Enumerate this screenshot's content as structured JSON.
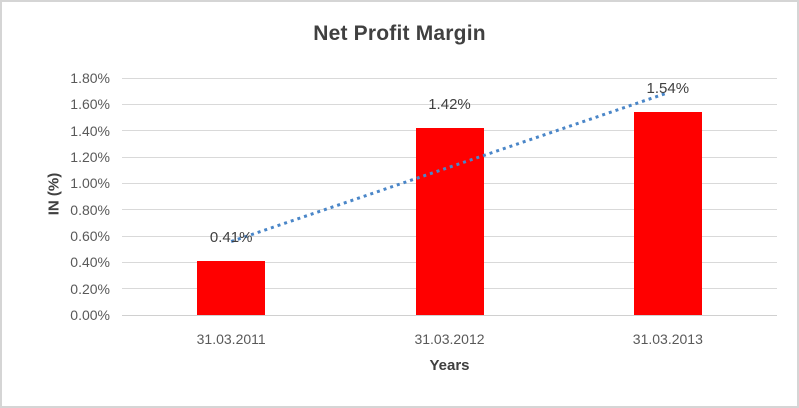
{
  "chart_data": {
    "type": "bar",
    "title": "Net Profit Margin",
    "xlabel": "Years",
    "ylabel": "IN (%)",
    "categories": [
      "31.03.2011",
      "31.03.2012",
      "31.03.2013"
    ],
    "values": [
      0.41,
      1.42,
      1.54
    ],
    "data_labels": [
      "0.41%",
      "1.42%",
      "1.54%"
    ],
    "ylim": [
      0,
      1.8
    ],
    "ytick_step": 0.2,
    "yticks": [
      {
        "value": 0.0,
        "label": "0.00%"
      },
      {
        "value": 0.2,
        "label": "0.20%"
      },
      {
        "value": 0.4,
        "label": "0.40%"
      },
      {
        "value": 0.6,
        "label": "0.60%"
      },
      {
        "value": 0.8,
        "label": "0.80%"
      },
      {
        "value": 1.0,
        "label": "1.00%"
      },
      {
        "value": 1.2,
        "label": "1.20%"
      },
      {
        "value": 1.4,
        "label": "1.40%"
      },
      {
        "value": 1.6,
        "label": "1.60%"
      },
      {
        "value": 1.8,
        "label": "1.80%"
      }
    ],
    "grid": true,
    "legend": "none",
    "trendline": {
      "type": "linear",
      "style": "dotted",
      "start_value": 0.558,
      "end_value": 1.688
    },
    "colors": {
      "bar": "#FF0000",
      "trendline": "#4A86C8",
      "gridline": "#D9D9D9",
      "axis_line": "#D0D0D0",
      "title_text": "#404040",
      "axis_title_text": "#404040",
      "tick_text": "#595959",
      "data_label_text": "#404040",
      "frame_border": "#D5D5D5"
    }
  }
}
